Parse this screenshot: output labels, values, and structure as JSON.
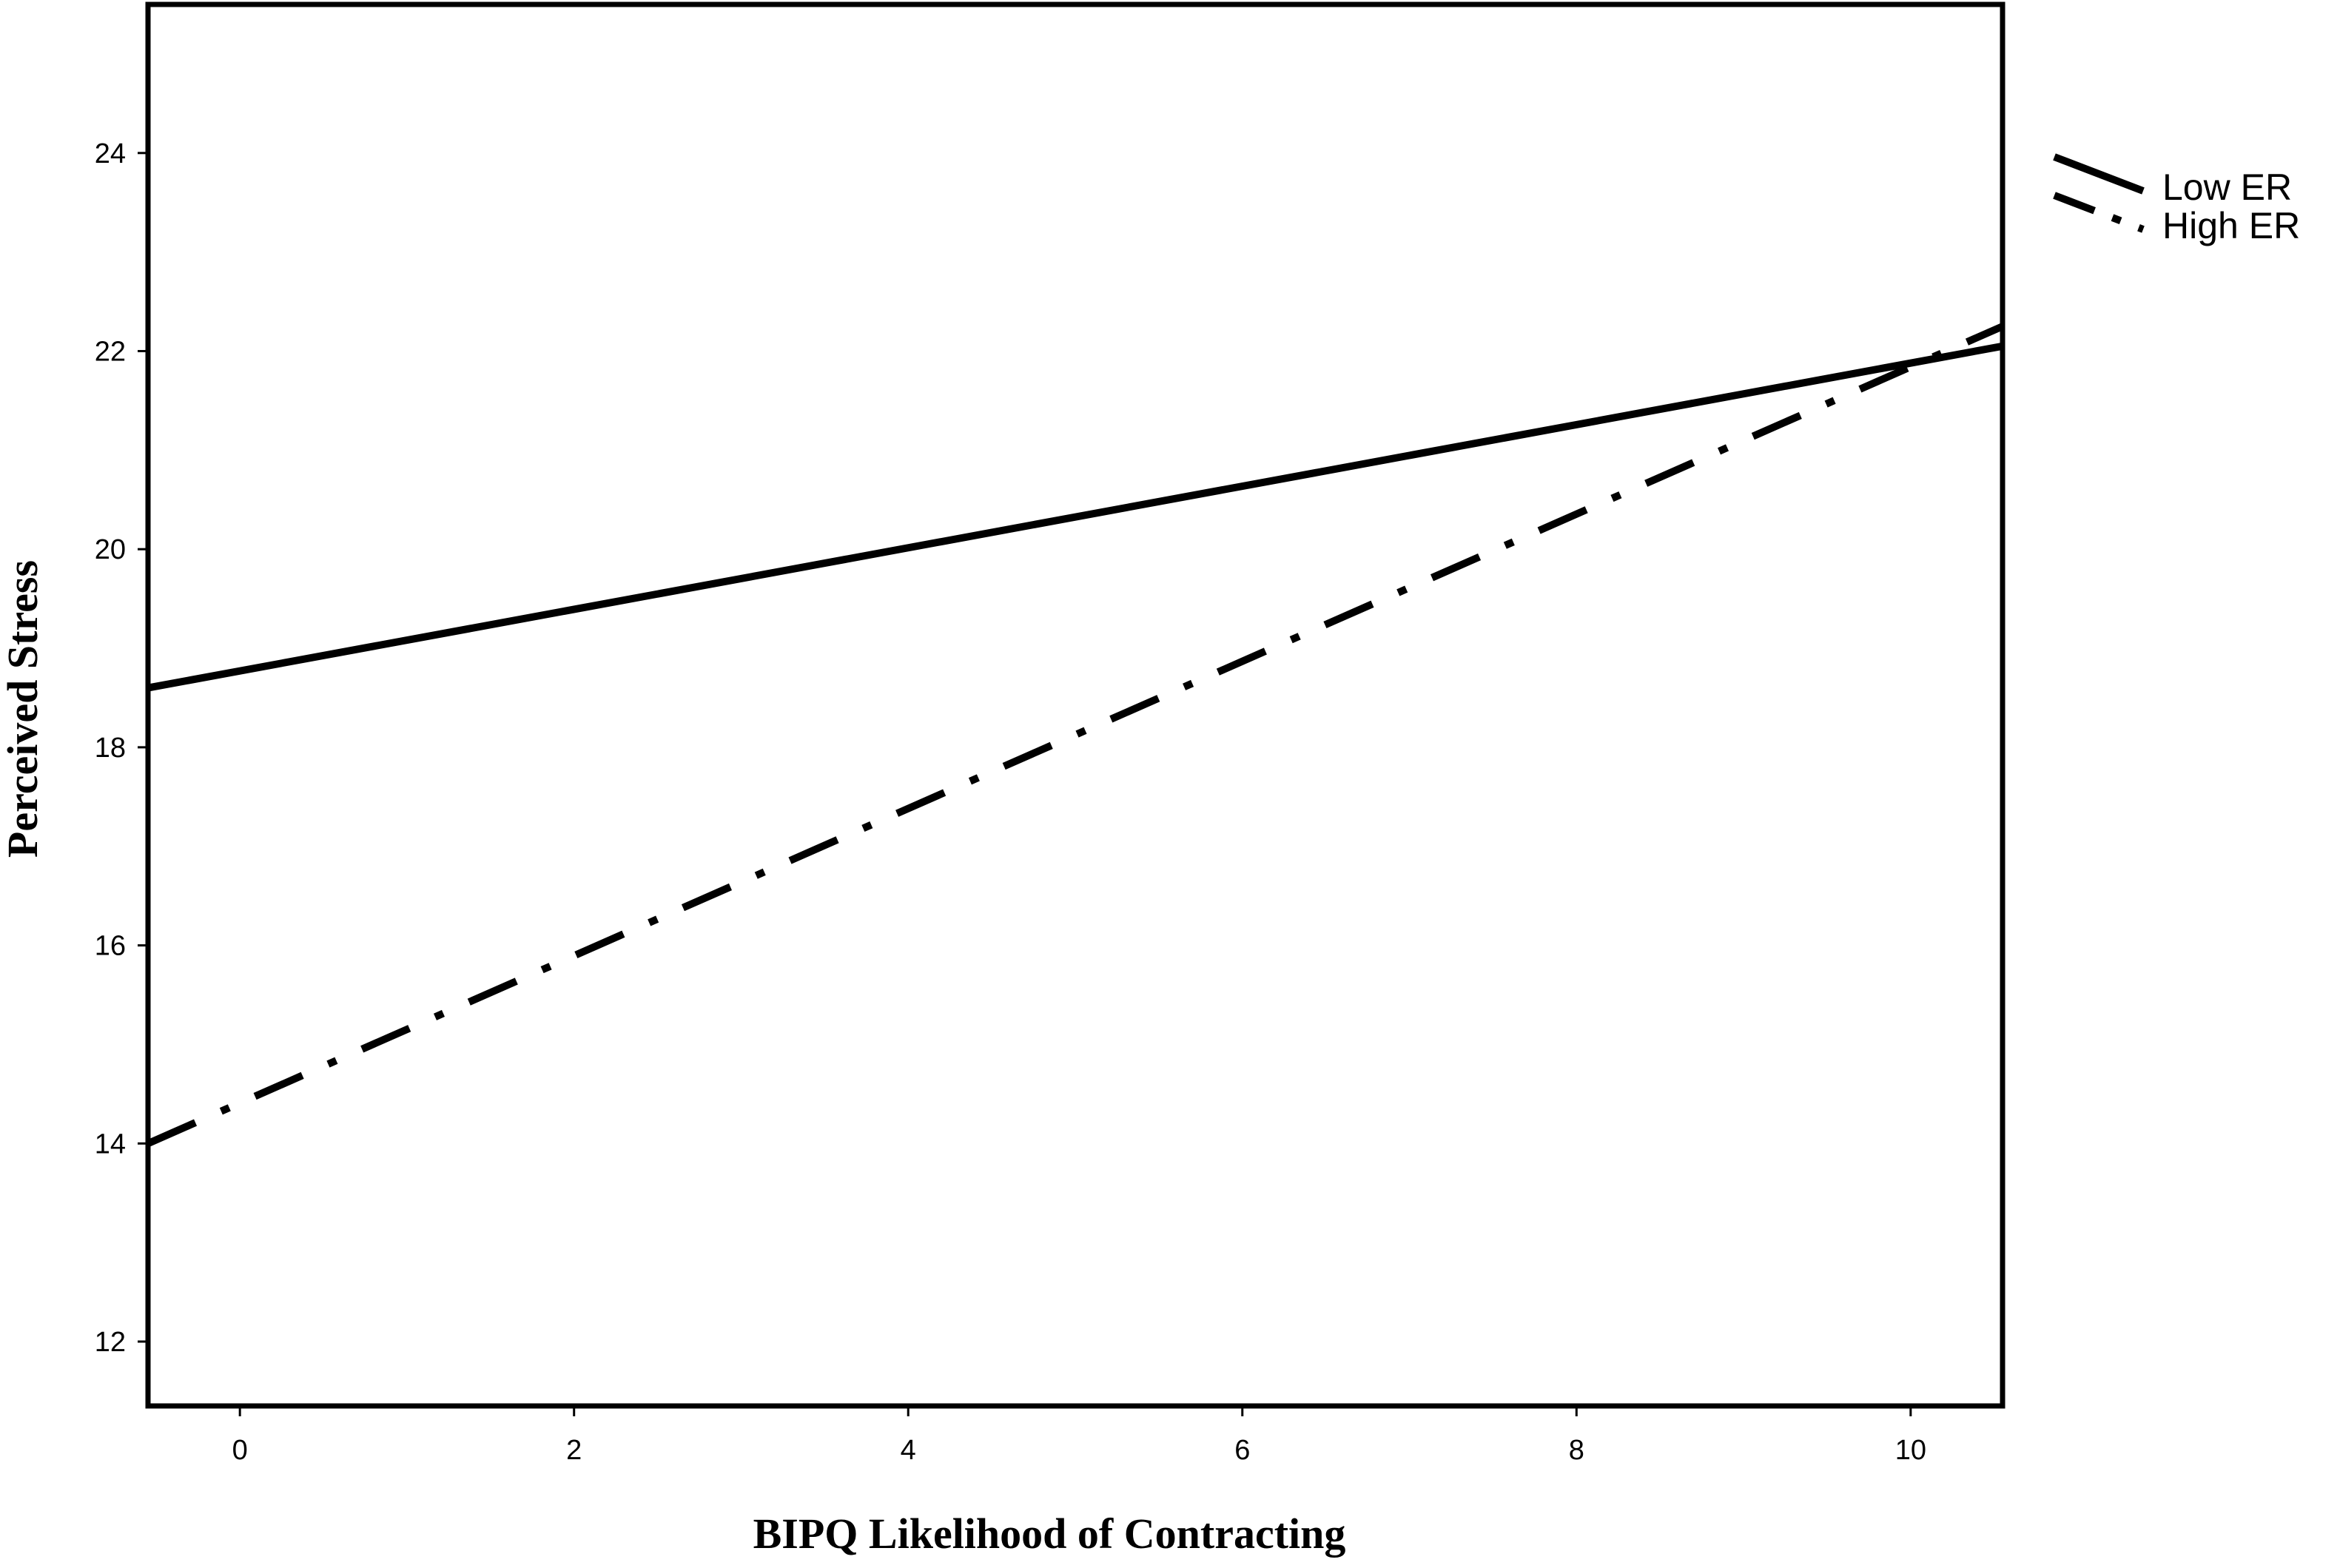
{
  "chart_data": {
    "type": "line",
    "xlabel": "BIPQ Likelihood of Contracting",
    "ylabel": "Perceived Stress",
    "xlim": [
      -0.55,
      10.55
    ],
    "ylim": [
      11.35,
      25.5
    ],
    "xticks": [
      0,
      2,
      4,
      6,
      8,
      10
    ],
    "yticks": [
      12,
      14,
      16,
      18,
      20,
      22,
      24
    ],
    "grid": false,
    "legend_position": "top-right, outside plot",
    "series": [
      {
        "name": "Low ER",
        "style": "solid",
        "color": "#000000",
        "x": [
          -0.55,
          10.55
        ],
        "y": [
          18.6,
          22.05
        ]
      },
      {
        "name": "High ER",
        "style": "dash-dot",
        "color": "#000000",
        "x": [
          -0.55,
          10.55
        ],
        "y": [
          14.0,
          22.25
        ]
      }
    ]
  }
}
